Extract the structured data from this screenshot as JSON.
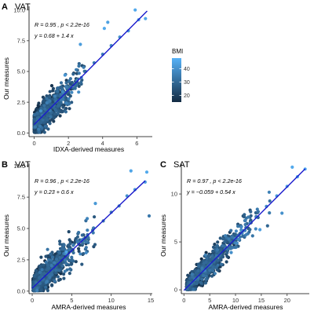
{
  "figure": {
    "colorbar": {
      "title": "BMI",
      "min": 15,
      "max": 48,
      "ticks": [
        "20",
        "30",
        "40"
      ],
      "tick_values": [
        20,
        30,
        40
      ],
      "color_low": "#132B43",
      "color_high": "#56B1F7"
    },
    "fit_line_color": "#1a1acc"
  },
  "chart_data": [
    {
      "id": "A",
      "type": "scatter",
      "panel_letter": "A",
      "title": "VAT",
      "xlabel": "IDXA-derived measures",
      "ylabel": "Our measures",
      "xlim": [
        -0.3,
        6.9
      ],
      "ylim": [
        -0.3,
        10.3
      ],
      "xticks": [
        0,
        2,
        4,
        6
      ],
      "yticks": [
        0.0,
        2.5,
        5.0,
        7.5,
        10.0
      ],
      "xtick_labels": [
        "0",
        "2",
        "4",
        "6"
      ],
      "ytick_labels": [
        "0.0",
        "2.5",
        "5.0",
        "7.5",
        "10.0"
      ],
      "annotation_r": "R = 0.95 , p < 2.2e-16",
      "annotation_eq": "y = 0.68 + 1.4 x",
      "fit": {
        "intercept": 0.68,
        "slope": 1.4,
        "x_range": [
          0,
          6.6
        ]
      },
      "points_sample": [
        [
          0.2,
          1.0,
          24
        ],
        [
          0.5,
          1.3,
          22
        ],
        [
          1.0,
          2.3,
          27
        ],
        [
          1.5,
          3.0,
          30
        ],
        [
          2.0,
          3.6,
          28
        ],
        [
          2.5,
          4.3,
          33
        ],
        [
          3.0,
          5.0,
          31
        ],
        [
          3.5,
          5.7,
          35
        ],
        [
          4.0,
          6.4,
          36
        ],
        [
          4.5,
          7.1,
          38
        ],
        [
          5.0,
          7.8,
          40
        ],
        [
          5.5,
          8.3,
          42
        ],
        [
          6.1,
          9.2,
          44
        ],
        [
          6.5,
          9.3,
          45
        ],
        [
          5.9,
          10.0,
          46
        ],
        [
          1.8,
          4.7,
          41
        ],
        [
          2.7,
          7.2,
          43
        ],
        [
          4.3,
          9.0,
          44
        ],
        [
          4.1,
          8.5,
          46
        ]
      ]
    },
    {
      "id": "B",
      "type": "scatter",
      "panel_letter": "B",
      "title": "VAT",
      "xlabel": "AMRA-derived measures",
      "ylabel": "Our measures",
      "xlim": [
        -0.4,
        15.2
      ],
      "ylim": [
        -0.2,
        10.2
      ],
      "xticks": [
        0,
        5,
        10,
        15
      ],
      "yticks": [
        0.0,
        2.5,
        5.0,
        7.5,
        10.0
      ],
      "xtick_labels": [
        "0",
        "5",
        "10",
        "15"
      ],
      "ytick_labels": [
        "0.0",
        "2.5",
        "5.0",
        "7.5",
        "10.0"
      ],
      "annotation_r": "R = 0.96 , p < 2.2e-16",
      "annotation_eq": "y = 0.23 + 0.6 x",
      "fit": {
        "intercept": 0.23,
        "slope": 0.6,
        "x_range": [
          0,
          14.3
        ]
      },
      "points_sample": [
        [
          0.5,
          0.5,
          22
        ],
        [
          1.5,
          1.2,
          24
        ],
        [
          3.0,
          2.0,
          27
        ],
        [
          5.0,
          3.2,
          30
        ],
        [
          7.0,
          4.5,
          32
        ],
        [
          9.0,
          5.6,
          35
        ],
        [
          10.0,
          6.3,
          36
        ],
        [
          11.0,
          6.8,
          38
        ],
        [
          12.0,
          7.6,
          40
        ],
        [
          13.0,
          8.1,
          42
        ],
        [
          14.3,
          8.7,
          44
        ],
        [
          14.5,
          9.5,
          46
        ],
        [
          12.5,
          9.6,
          45
        ],
        [
          8.0,
          7.0,
          42
        ],
        [
          14.8,
          6.0,
          34
        ]
      ]
    },
    {
      "id": "C",
      "type": "scatter",
      "panel_letter": "C",
      "title": "SAT",
      "xlabel": "AMRA-derived measures",
      "ylabel": "Our measures",
      "xlim": [
        -0.5,
        24.3
      ],
      "ylim": [
        -0.4,
        13.2
      ],
      "xticks": [
        0,
        5,
        10,
        15,
        20
      ],
      "yticks": [
        0,
        5,
        10
      ],
      "xtick_labels": [
        "0",
        "5",
        "10",
        "15",
        "20"
      ],
      "ytick_labels": [
        "0",
        "5",
        "10"
      ],
      "annotation_r": "R = 0.97 , p < 2.2e-16",
      "annotation_eq": "y = −0.059 + 0.54 x",
      "fit": {
        "intercept": -0.059,
        "slope": 0.54,
        "x_range": [
          0,
          23.5
        ]
      },
      "points_sample": [
        [
          1.0,
          0.5,
          19
        ],
        [
          3.0,
          1.5,
          21
        ],
        [
          5.0,
          2.8,
          24
        ],
        [
          8.0,
          4.3,
          27
        ],
        [
          10.0,
          5.4,
          30
        ],
        [
          12.0,
          6.5,
          33
        ],
        [
          14.0,
          7.6,
          36
        ],
        [
          16.0,
          8.7,
          39
        ],
        [
          18.0,
          9.8,
          42
        ],
        [
          20.0,
          10.8,
          44
        ],
        [
          22.0,
          11.8,
          46
        ],
        [
          23.5,
          12.6,
          47
        ],
        [
          21.0,
          12.8,
          46
        ],
        [
          19.0,
          8.0,
          40
        ]
      ]
    }
  ]
}
